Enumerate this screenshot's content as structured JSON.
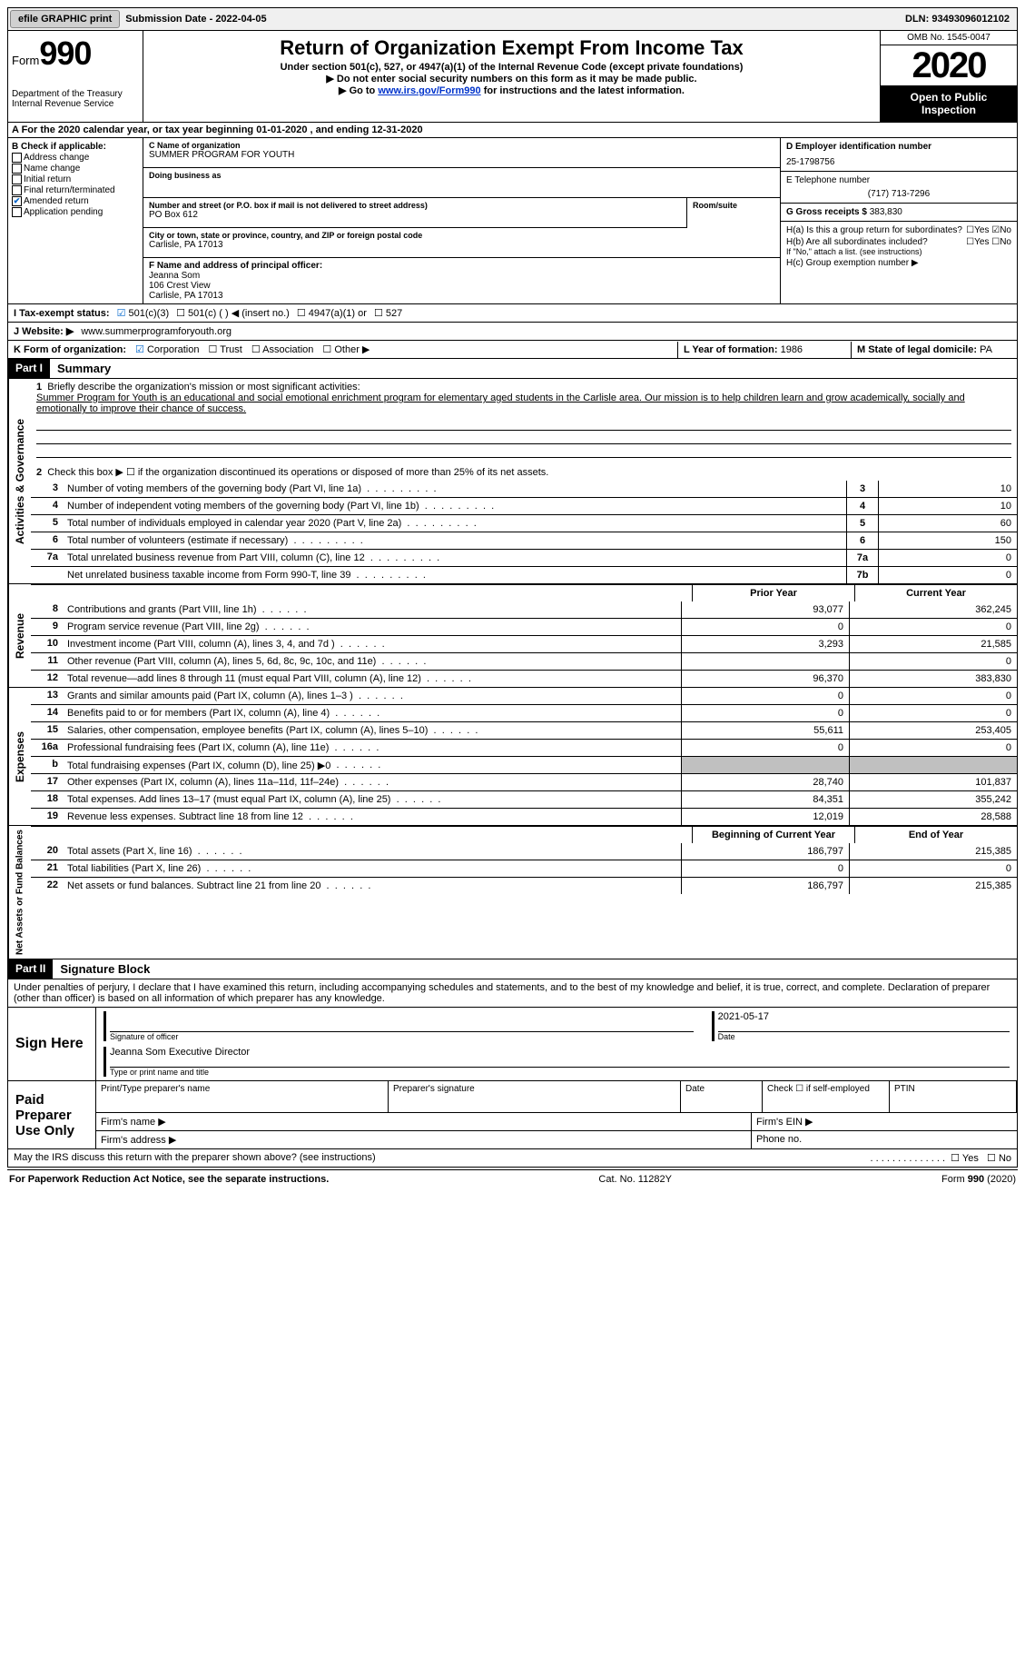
{
  "topbar": {
    "efile_btn": "efile GRAPHIC print",
    "submission_label": "Submission Date - 2022-04-05",
    "dln_label": "DLN: 93493096012102"
  },
  "header": {
    "form_label": "Form",
    "form_number": "990",
    "dept": "Department of the Treasury",
    "irs": "Internal Revenue Service",
    "title": "Return of Organization Exempt From Income Tax",
    "subtitle": "Under section 501(c), 527, or 4947(a)(1) of the Internal Revenue Code (except private foundations)",
    "arrow1": "▶ Do not enter social security numbers on this form as it may be made public.",
    "arrow2_pre": "▶ Go to ",
    "arrow2_link": "www.irs.gov/Form990",
    "arrow2_post": " for instructions and the latest information.",
    "omb": "OMB No. 1545-0047",
    "year": "2020",
    "inspection": "Open to Public Inspection"
  },
  "section_a": "A For the 2020 calendar year, or tax year beginning 01-01-2020    , and ending 12-31-2020",
  "col_b": {
    "title": "B Check if applicable:",
    "items": [
      "Address change",
      "Name change",
      "Initial return",
      "Final return/terminated",
      "Amended return",
      "Application pending"
    ],
    "checked_index": 4
  },
  "col_c": {
    "name_label": "C Name of organization",
    "name": "SUMMER PROGRAM FOR YOUTH",
    "dba_label": "Doing business as",
    "dba": "",
    "street_label": "Number and street (or P.O. box if mail is not delivered to street address)",
    "room_label": "Room/suite",
    "street": "PO Box 612",
    "city_label": "City or town, state or province, country, and ZIP or foreign postal code",
    "city": "Carlisle, PA   17013",
    "f_label": "F Name and address of principal officer:",
    "f_name": "Jeanna Som",
    "f_addr1": "106 Crest View",
    "f_addr2": "Carlisle, PA   17013"
  },
  "col_d": {
    "ein_label": "D Employer identification number",
    "ein": "25-1798756",
    "phone_label": "E Telephone number",
    "phone": "(717) 713-7296",
    "gross_label": "G Gross receipts $",
    "gross": "383,830"
  },
  "col_h": {
    "ha": "H(a)  Is this a group return for subordinates?",
    "hb": "H(b)  Are all subordinates included?",
    "hb_note": "If \"No,\" attach a list. (see instructions)",
    "hc": "H(c)  Group exemption number ▶",
    "yes": "Yes",
    "no": "No"
  },
  "row_i": {
    "label": "I   Tax-exempt status:",
    "opt1": "501(c)(3)",
    "opt2": "501(c) (   ) ◀ (insert no.)",
    "opt3": "4947(a)(1) or",
    "opt4": "527"
  },
  "row_j": {
    "label": "J   Website: ▶",
    "value": "www.summerprogramforyouth.org"
  },
  "row_k": {
    "label": "K Form of organization:",
    "opts": [
      "Corporation",
      "Trust",
      "Association",
      "Other ▶"
    ],
    "checked": 0,
    "l_label": "L Year of formation:",
    "l_val": "1986",
    "m_label": "M State of legal domicile:",
    "m_val": "PA"
  },
  "part1": {
    "header": "Part I",
    "title": "Summary",
    "line1_label": "Briefly describe the organization's mission or most significant activities:",
    "line1_text": "Summer Program for Youth is an educational and social emotional enrichment program for elementary aged students in the Carlisle area. Our mission is to help children learn and grow academically, socially and emotionally to improve their chance of success.",
    "line2": "Check this box ▶ ☐  if the organization discontinued its operations or disposed of more than 25% of its net assets.",
    "vert_gov": "Activities & Governance",
    "vert_rev": "Revenue",
    "vert_exp": "Expenses",
    "vert_net": "Net Assets or Fund Balances",
    "prior_year": "Prior Year",
    "current_year": "Current Year",
    "begin_year": "Beginning of Current Year",
    "end_year": "End of Year",
    "lines_gov": [
      {
        "n": "3",
        "d": "Number of voting members of the governing body (Part VI, line 1a)",
        "box": "3",
        "v": "10"
      },
      {
        "n": "4",
        "d": "Number of independent voting members of the governing body (Part VI, line 1b)",
        "box": "4",
        "v": "10"
      },
      {
        "n": "5",
        "d": "Total number of individuals employed in calendar year 2020 (Part V, line 2a)",
        "box": "5",
        "v": "60"
      },
      {
        "n": "6",
        "d": "Total number of volunteers (estimate if necessary)",
        "box": "6",
        "v": "150"
      },
      {
        "n": "7a",
        "d": "Total unrelated business revenue from Part VIII, column (C), line 12",
        "box": "7a",
        "v": "0"
      },
      {
        "n": "",
        "d": "Net unrelated business taxable income from Form 990-T, line 39",
        "box": "7b",
        "v": "0"
      }
    ],
    "lines_rev": [
      {
        "n": "8",
        "d": "Contributions and grants (Part VIII, line 1h)",
        "p": "93,077",
        "c": "362,245"
      },
      {
        "n": "9",
        "d": "Program service revenue (Part VIII, line 2g)",
        "p": "0",
        "c": "0"
      },
      {
        "n": "10",
        "d": "Investment income (Part VIII, column (A), lines 3, 4, and 7d )",
        "p": "3,293",
        "c": "21,585"
      },
      {
        "n": "11",
        "d": "Other revenue (Part VIII, column (A), lines 5, 6d, 8c, 9c, 10c, and 11e)",
        "p": "",
        "c": "0"
      },
      {
        "n": "12",
        "d": "Total revenue—add lines 8 through 11 (must equal Part VIII, column (A), line 12)",
        "p": "96,370",
        "c": "383,830"
      }
    ],
    "lines_exp": [
      {
        "n": "13",
        "d": "Grants and similar amounts paid (Part IX, column (A), lines 1–3 )",
        "p": "0",
        "c": "0"
      },
      {
        "n": "14",
        "d": "Benefits paid to or for members (Part IX, column (A), line 4)",
        "p": "0",
        "c": "0"
      },
      {
        "n": "15",
        "d": "Salaries, other compensation, employee benefits (Part IX, column (A), lines 5–10)",
        "p": "55,611",
        "c": "253,405"
      },
      {
        "n": "16a",
        "d": "Professional fundraising fees (Part IX, column (A), line 11e)",
        "p": "0",
        "c": "0"
      },
      {
        "n": "b",
        "d": "Total fundraising expenses (Part IX, column (D), line 25) ▶0",
        "p": "SHADE",
        "c": "SHADE"
      },
      {
        "n": "17",
        "d": "Other expenses (Part IX, column (A), lines 11a–11d, 11f–24e)",
        "p": "28,740",
        "c": "101,837"
      },
      {
        "n": "18",
        "d": "Total expenses. Add lines 13–17 (must equal Part IX, column (A), line 25)",
        "p": "84,351",
        "c": "355,242"
      },
      {
        "n": "19",
        "d": "Revenue less expenses. Subtract line 18 from line 12",
        "p": "12,019",
        "c": "28,588"
      }
    ],
    "lines_net": [
      {
        "n": "20",
        "d": "Total assets (Part X, line 16)",
        "p": "186,797",
        "c": "215,385"
      },
      {
        "n": "21",
        "d": "Total liabilities (Part X, line 26)",
        "p": "0",
        "c": "0"
      },
      {
        "n": "22",
        "d": "Net assets or fund balances. Subtract line 21 from line 20",
        "p": "186,797",
        "c": "215,385"
      }
    ]
  },
  "part2": {
    "header": "Part II",
    "title": "Signature Block",
    "declaration": "Under penalties of perjury, I declare that I have examined this return, including accompanying schedules and statements, and to the best of my knowledge and belief, it is true, correct, and complete. Declaration of preparer (other than officer) is based on all information of which preparer has any knowledge.",
    "sign_here": "Sign Here",
    "sig_officer": "Signature of officer",
    "sig_date": "2021-05-17",
    "date_label": "Date",
    "name_title": "Jeanna Som  Executive Director",
    "name_title_label": "Type or print name and title",
    "paid_prep": "Paid Preparer Use Only",
    "prep_name": "Print/Type preparer's name",
    "prep_sig": "Preparer's signature",
    "prep_date": "Date",
    "prep_check": "Check ☐ if self-employed",
    "prep_ptin": "PTIN",
    "firm_name": "Firm's name    ▶",
    "firm_ein": "Firm's EIN ▶",
    "firm_addr": "Firm's address ▶",
    "firm_phone": "Phone no.",
    "discuss": "May the IRS discuss this return with the preparer shown above? (see instructions)"
  },
  "footer": {
    "left": "For Paperwork Reduction Act Notice, see the separate instructions.",
    "mid": "Cat. No. 11282Y",
    "right": "Form 990 (2020)"
  }
}
